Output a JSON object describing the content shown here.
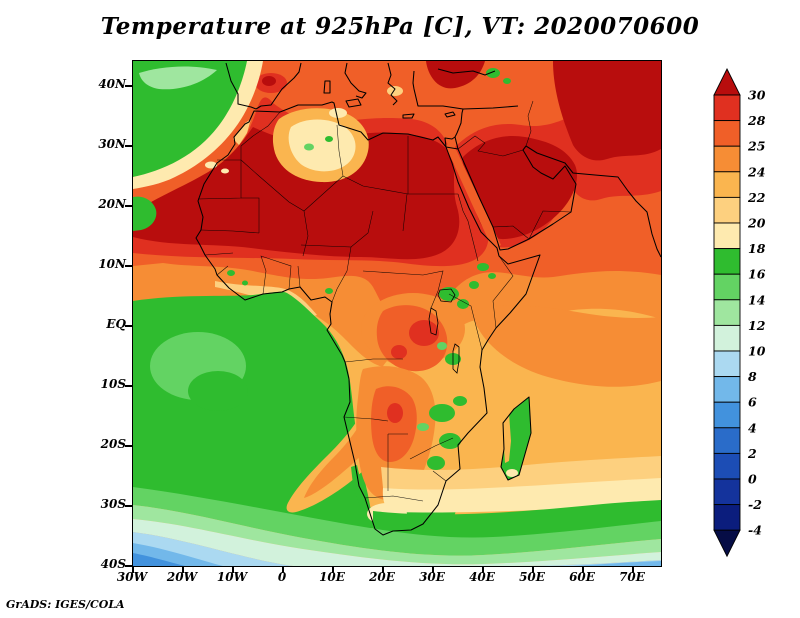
{
  "title": "Temperature at 925hPa [C], VT: 2020070600",
  "credit": "GrADS: IGES/COLA",
  "map": {
    "lat_ticks": [
      "40N",
      "30N",
      "20N",
      "10N",
      "EQ",
      "10S",
      "20S",
      "30S",
      "40S"
    ],
    "lon_ticks": [
      "30W",
      "20W",
      "10W",
      "0",
      "10E",
      "20E",
      "30E",
      "40E",
      "50E",
      "60E",
      "70E"
    ]
  },
  "colorbar": {
    "levels": [
      "30",
      "28",
      "25",
      "24",
      "22",
      "20",
      "18",
      "16",
      "14",
      "12",
      "10",
      "8",
      "6",
      "4",
      "2",
      "0",
      "-2",
      "-4"
    ],
    "colors": [
      "#b80d0d",
      "#e03020",
      "#f05f28",
      "#f68d35",
      "#fab54f",
      "#fdd07f",
      "#feeaaf",
      "#2fbc2f",
      "#63d363",
      "#9fe69f",
      "#d2f2dc",
      "#abd9f1",
      "#72b8ea",
      "#4292dd",
      "#2a6cc9",
      "#1c4db5",
      "#14339c",
      "#0b1d7d",
      "#060d46"
    ]
  },
  "chart_data": {
    "type": "heatmap",
    "title": "Temperature at 925hPa [C], VT: 2020070600",
    "variable": "Temperature",
    "level": "925hPa",
    "units": "C",
    "valid_time": "2020070600",
    "region": "Africa, Middle East, adjacent Atlantic and Indian Oceans",
    "x_ticks": [
      "30W",
      "20W",
      "10W",
      "0",
      "10E",
      "20E",
      "30E",
      "40E",
      "50E",
      "60E",
      "70E"
    ],
    "y_ticks": [
      "40N",
      "30N",
      "20N",
      "10N",
      "EQ",
      "10S",
      "20S",
      "30S",
      "40S"
    ],
    "lon_range_deg_east": [
      -30,
      75
    ],
    "lat_range_deg_north": [
      -40,
      40
    ],
    "grid": false,
    "legend_position": "right",
    "contour_levels_C": [
      -4,
      -2,
      0,
      2,
      4,
      6,
      8,
      10,
      12,
      14,
      16,
      18,
      20,
      22,
      24,
      25,
      28,
      30
    ],
    "colors_cold_to_hot": [
      "#060d46",
      "#0b1d7d",
      "#14339c",
      "#1c4db5",
      "#2a6cc9",
      "#4292dd",
      "#72b8ea",
      "#abd9f1",
      "#d2f2dc",
      "#9fe69f",
      "#63d363",
      "#2fbc2f",
      "#feeaaf",
      "#fdd07f",
      "#fab54f",
      "#f68d35",
      "#f05f28",
      "#e03020",
      "#b80d0d"
    ],
    "notable_features": [
      {
        "region": "Western Sahara / Mali / Niger (Sahara core)",
        "approx_value_C": "> 30"
      },
      {
        "region": "Libya / Egypt / Sudan",
        "approx_value_C": "> 30"
      },
      {
        "region": "Arabian Peninsula, Iraq and Iran",
        "approx_value_C": "> 30"
      },
      {
        "region": "Atlas region, northern Algeria (elevated, pale patch)",
        "approx_value_C": "18-24"
      },
      {
        "region": "Northeast Atlantic (NW corner of map)",
        "approx_value_C": "14-18"
      },
      {
        "region": "Equatorial and southeast Atlantic",
        "approx_value_C": "14-18"
      },
      {
        "region": "Congo Basin",
        "approx_value_C": "25-30"
      },
      {
        "region": "Angola / Namibia interior with warm tongue extending SW offshore",
        "approx_value_C": "22-28"
      },
      {
        "region": "Eastern South Africa highlands and Madagascar interior",
        "approx_value_C": "14-18"
      },
      {
        "region": "Tropical Indian Ocean",
        "approx_value_C": "22-25"
      },
      {
        "region": "Mediterranean Sea area",
        "approx_value_C": "24-30"
      },
      {
        "region": "Southern Ocean near 40S",
        "approx_value_C": "0-8"
      }
    ]
  }
}
